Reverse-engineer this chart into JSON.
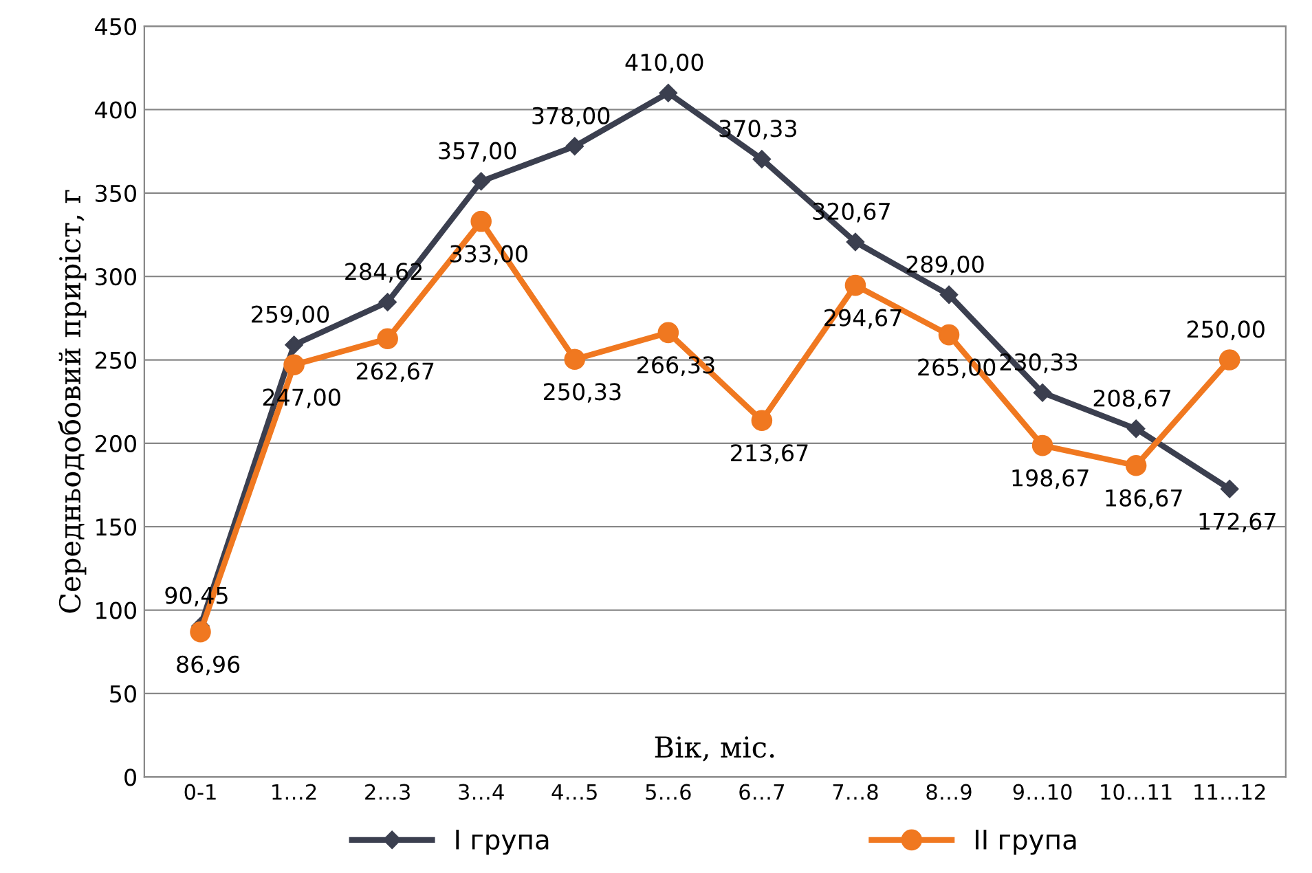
{
  "chart_data": {
    "type": "line",
    "xlabel": "Вік, міс.",
    "ylabel": "Середньодобовий приріст, г",
    "categories": [
      "0-1",
      "1…2",
      "2…3",
      "3…4",
      "4…5",
      "5…6",
      "6…7",
      "7…8",
      "8…9",
      "9…10",
      "10…11",
      "11…12"
    ],
    "series": [
      {
        "name": "I група",
        "color": "#3b3f4f",
        "marker": "diamond",
        "values": [
          90.45,
          259.0,
          284.62,
          357.0,
          378.0,
          410.0,
          370.33,
          320.67,
          289.0,
          230.33,
          208.67,
          172.67
        ],
        "value_labels": [
          "90,45",
          "259,00",
          "284,62",
          "357,00",
          "378,00",
          "410,00",
          "370,33",
          "320,67",
          "289,00",
          "230,33",
          "208,67",
          "172,67"
        ]
      },
      {
        "name": "II група",
        "color": "#f07820",
        "marker": "circle",
        "values": [
          86.96,
          247.0,
          262.67,
          333.0,
          250.33,
          266.33,
          213.67,
          294.67,
          265.0,
          198.67,
          186.67,
          250.0
        ],
        "value_labels": [
          "86,96",
          "247,00",
          "262,67",
          "333,00",
          "250,33",
          "266,33",
          "213,67",
          "294,67",
          "265,00",
          "198,67",
          "186,67",
          "250,00"
        ]
      }
    ],
    "ylim": [
      0,
      450
    ],
    "yticks": [
      0,
      50,
      100,
      150,
      200,
      250,
      300,
      350,
      400,
      450
    ],
    "grid": "y",
    "legend": "bottom",
    "line_style": "solid"
  }
}
